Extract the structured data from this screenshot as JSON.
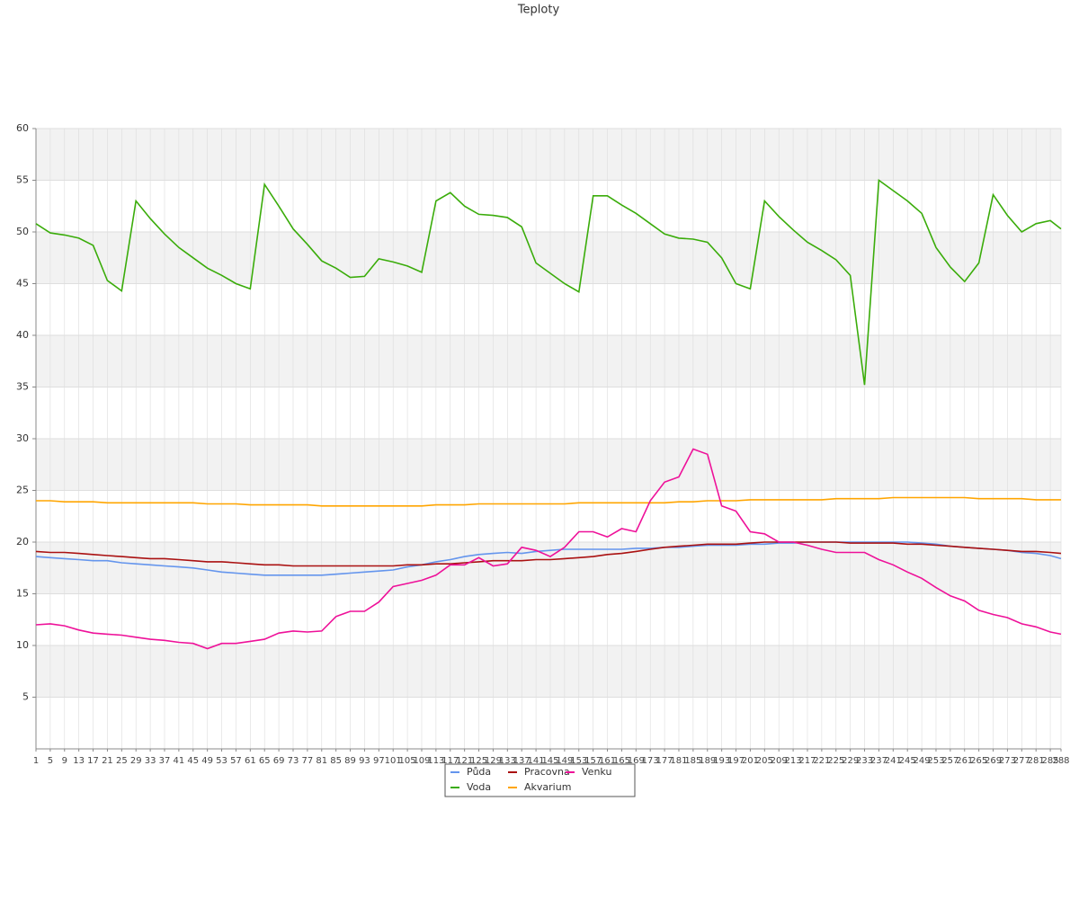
{
  "chart_data": {
    "type": "line",
    "title": "Teploty",
    "x": [
      1,
      5,
      9,
      13,
      17,
      21,
      25,
      29,
      33,
      37,
      41,
      45,
      49,
      53,
      57,
      61,
      65,
      69,
      73,
      77,
      81,
      85,
      89,
      93,
      97,
      101,
      105,
      109,
      113,
      117,
      121,
      125,
      129,
      133,
      137,
      141,
      145,
      149,
      153,
      157,
      161,
      165,
      169,
      173,
      177,
      181,
      185,
      189,
      193,
      197,
      201,
      205,
      209,
      213,
      217,
      221,
      225,
      229,
      233,
      237,
      241,
      245,
      249,
      253,
      257,
      261,
      265,
      269,
      273,
      277,
      281,
      285,
      288
    ],
    "xlim": [
      1,
      288
    ],
    "ylim": [
      0,
      60
    ],
    "yticks": [
      5,
      10,
      15,
      20,
      25,
      30,
      35,
      40,
      45,
      50,
      55,
      60
    ],
    "grid": true,
    "series": [
      {
        "name": "Půda",
        "color": "#6495ed",
        "values": [
          18.6,
          18.5,
          18.4,
          18.3,
          18.2,
          18.2,
          18,
          17.9,
          17.8,
          17.7,
          17.6,
          17.5,
          17.3,
          17.1,
          17,
          16.9,
          16.8,
          16.8,
          16.8,
          16.8,
          16.8,
          16.9,
          17,
          17.1,
          17.2,
          17.3,
          17.6,
          17.8,
          18.1,
          18.3,
          18.6,
          18.8,
          18.9,
          19,
          18.9,
          19.1,
          19.2,
          19.3,
          19.3,
          19.3,
          19.3,
          19.3,
          19.4,
          19.4,
          19.5,
          19.5,
          19.6,
          19.7,
          19.7,
          19.7,
          19.8,
          19.8,
          19.9,
          19.9,
          20,
          20,
          20,
          20,
          20,
          20,
          20,
          20,
          19.9,
          19.8,
          19.6,
          19.5,
          19.4,
          19.3,
          19.2,
          19,
          18.9,
          18.7,
          18.4
        ]
      },
      {
        "name": "Voda",
        "color": "#3aac0a",
        "values": [
          50.8,
          49.9,
          49.7,
          49.4,
          48.7,
          45.3,
          44.3,
          53,
          51.3,
          49.8,
          48.5,
          47.5,
          46.5,
          45.8,
          45,
          44.5,
          54.6,
          52.5,
          50.3,
          48.8,
          47.2,
          46.5,
          45.6,
          45.7,
          47.4,
          47.1,
          46.7,
          46.1,
          53,
          53.8,
          52.5,
          51.7,
          51.6,
          51.4,
          50.5,
          47,
          46,
          45,
          44.2,
          53.5,
          53.5,
          52.6,
          51.8,
          50.8,
          49.8,
          49.4,
          49.3,
          49,
          47.5,
          45,
          44.5,
          53,
          51.5,
          50.2,
          49,
          48.2,
          47.3,
          45.8,
          35.2,
          55,
          54,
          53,
          51.8,
          48.5,
          46.6,
          45.2,
          47,
          53.6,
          51.6,
          50,
          50.8,
          51.1,
          50.3
        ]
      },
      {
        "name": "Pracovna",
        "color": "#aa1111",
        "values": [
          19.1,
          19,
          19,
          18.9,
          18.8,
          18.7,
          18.6,
          18.5,
          18.4,
          18.4,
          18.3,
          18.2,
          18.1,
          18.1,
          18,
          17.9,
          17.8,
          17.8,
          17.7,
          17.7,
          17.7,
          17.7,
          17.7,
          17.7,
          17.7,
          17.7,
          17.8,
          17.8,
          17.9,
          17.9,
          18,
          18.1,
          18.2,
          18.2,
          18.2,
          18.3,
          18.3,
          18.4,
          18.5,
          18.6,
          18.8,
          18.9,
          19.1,
          19.3,
          19.5,
          19.6,
          19.7,
          19.8,
          19.8,
          19.8,
          19.9,
          20,
          20,
          20,
          20,
          20,
          20,
          19.9,
          19.9,
          19.9,
          19.9,
          19.8,
          19.8,
          19.7,
          19.6,
          19.5,
          19.4,
          19.3,
          19.2,
          19.1,
          19.1,
          19,
          18.9
        ]
      },
      {
        "name": "Akvarium",
        "color": "#ffa500",
        "values": [
          24,
          24,
          23.9,
          23.9,
          23.9,
          23.8,
          23.8,
          23.8,
          23.8,
          23.8,
          23.8,
          23.8,
          23.7,
          23.7,
          23.7,
          23.6,
          23.6,
          23.6,
          23.6,
          23.6,
          23.5,
          23.5,
          23.5,
          23.5,
          23.5,
          23.5,
          23.5,
          23.5,
          23.6,
          23.6,
          23.6,
          23.7,
          23.7,
          23.7,
          23.7,
          23.7,
          23.7,
          23.7,
          23.8,
          23.8,
          23.8,
          23.8,
          23.8,
          23.8,
          23.8,
          23.9,
          23.9,
          24,
          24,
          24,
          24.1,
          24.1,
          24.1,
          24.1,
          24.1,
          24.1,
          24.2,
          24.2,
          24.2,
          24.2,
          24.3,
          24.3,
          24.3,
          24.3,
          24.3,
          24.3,
          24.2,
          24.2,
          24.2,
          24.2,
          24.1,
          24.1,
          24.1
        ]
      },
      {
        "name": "Venku",
        "color": "#ee1199",
        "values": [
          12,
          12.1,
          11.9,
          11.5,
          11.2,
          11.1,
          11,
          10.8,
          10.6,
          10.5,
          10.3,
          10.2,
          9.7,
          10.2,
          10.2,
          10.4,
          10.6,
          11.2,
          11.4,
          11.3,
          11.4,
          12.8,
          13.3,
          13.3,
          14.2,
          15.7,
          16,
          16.3,
          16.8,
          17.8,
          17.8,
          18.5,
          17.7,
          17.9,
          19.5,
          19.2,
          18.6,
          19.5,
          21,
          21,
          20.5,
          21.3,
          21,
          24,
          25.8,
          26.3,
          29,
          28.5,
          23.5,
          23,
          21,
          20.8,
          20,
          20,
          19.7,
          19.3,
          19,
          19,
          19,
          18.3,
          17.8,
          17.1,
          16.5,
          15.6,
          14.8,
          14.3,
          13.4,
          13,
          12.7,
          12.1,
          11.8,
          11.3,
          11.1
        ]
      }
    ]
  }
}
